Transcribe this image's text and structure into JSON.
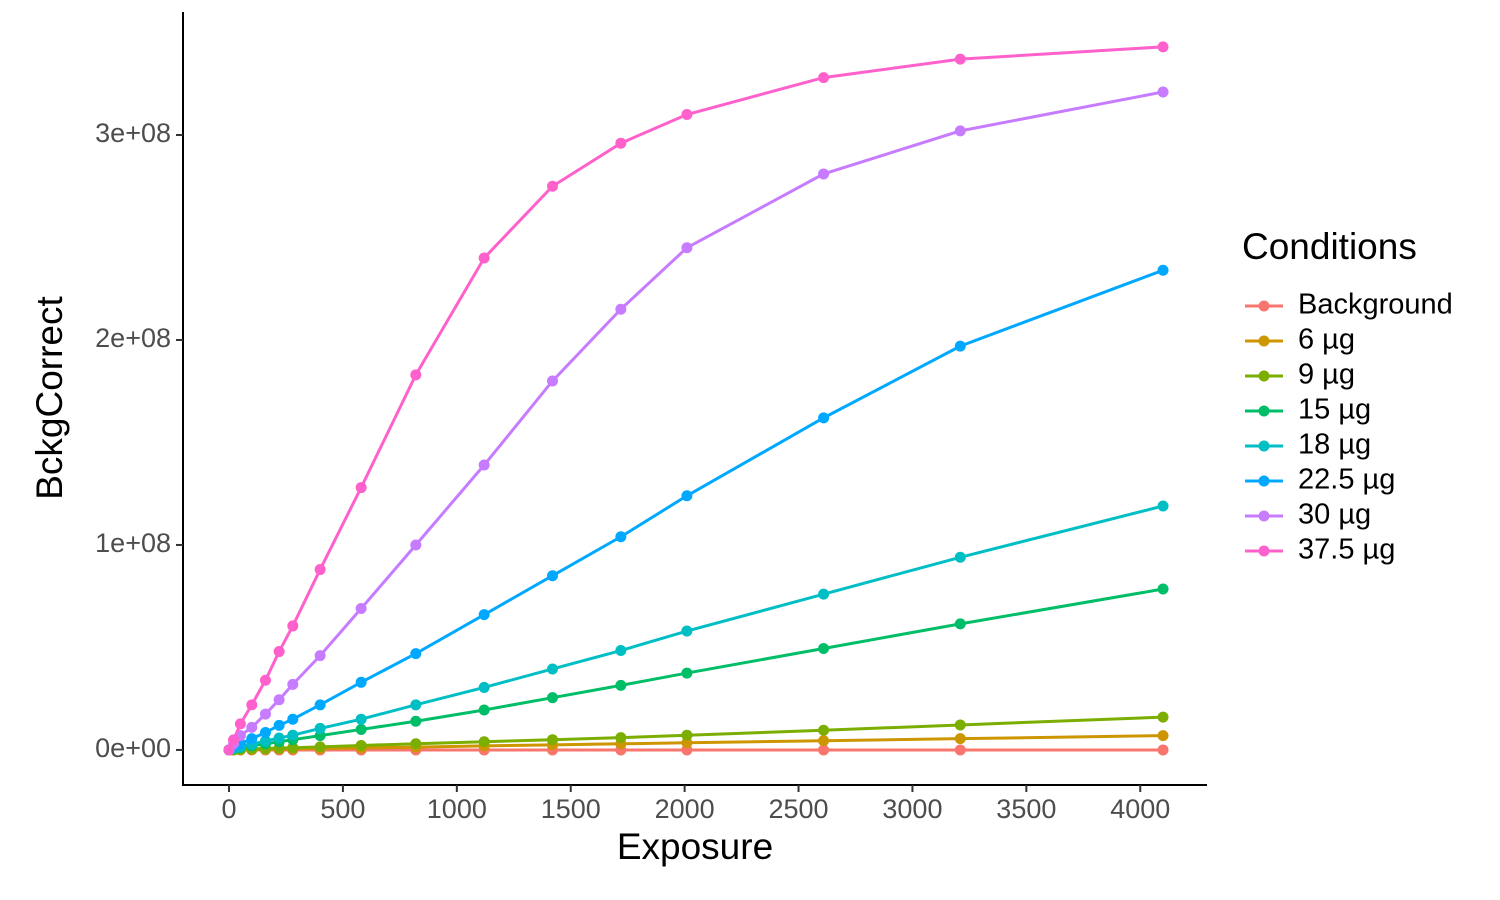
{
  "chart_data": {
    "type": "line",
    "x_label": "Exposure",
    "y_label": "BckgCorrect",
    "legend_title": "Conditions",
    "legend": "right",
    "grid": false,
    "x": [
      0,
      20,
      50,
      100,
      160,
      220,
      280,
      400,
      580,
      820,
      1120,
      1420,
      1720,
      2010,
      2610,
      3210,
      4100
    ],
    "xlim": [
      -202,
      4293
    ],
    "xticks": [
      0,
      500,
      1000,
      1500,
      2000,
      2500,
      3000,
      3500,
      4000
    ],
    "ylim": [
      -17100000,
      360000000
    ],
    "yticks": [
      {
        "value": 0,
        "label": "0e+00"
      },
      {
        "value": 100000000,
        "label": "1e+08"
      },
      {
        "value": 200000000,
        "label": "2e+08"
      },
      {
        "value": 300000000,
        "label": "3e+08"
      }
    ],
    "series": [
      {
        "name": "Background",
        "color": "#F8766D",
        "values": [
          0,
          0,
          0,
          0,
          0,
          0,
          0,
          0,
          0,
          0,
          0,
          0,
          0,
          0,
          0,
          0,
          0
        ]
      },
      {
        "name": "6 µg",
        "color": "#CD9600",
        "values": [
          0,
          50000,
          100000,
          200000,
          300000,
          400000,
          500000,
          700000,
          1000000,
          1400000,
          2000000,
          2500000,
          3000000,
          3500000,
          4500000,
          5500000,
          7000000
        ]
      },
      {
        "name": "9 µg",
        "color": "#7CAE00",
        "values": [
          0,
          100000,
          300000,
          500000,
          700000,
          900000,
          1100000,
          1500000,
          2200000,
          3000000,
          4000000,
          5000000,
          6000000,
          7200000,
          9600000,
          12200000,
          16000000
        ]
      },
      {
        "name": "15 µg",
        "color": "#00BE67",
        "values": [
          0,
          500000,
          1100000,
          2000000,
          3000000,
          4000000,
          5000000,
          7000000,
          10000000,
          14000000,
          19500000,
          25500000,
          31500000,
          37500000,
          49500000,
          61500000,
          78500000
        ]
      },
      {
        "name": "18 µg",
        "color": "#00BFC4",
        "values": [
          0,
          800000,
          1500000,
          2800000,
          4400000,
          5800000,
          7200000,
          10500000,
          15000000,
          22000000,
          30500000,
          39500000,
          48500000,
          58000000,
          76000000,
          94000000,
          119000000
        ]
      },
      {
        "name": "22.5 µg",
        "color": "#00A9FF",
        "values": [
          0,
          1500000,
          3000000,
          5500000,
          8500000,
          12000000,
          15000000,
          22000000,
          33000000,
          47000000,
          66000000,
          85000000,
          104000000,
          124000000,
          162000000,
          197000000,
          234000000
        ]
      },
      {
        "name": "30 µg",
        "color": "#C77CFF",
        "values": [
          0,
          3000000,
          7000000,
          11000000,
          17500000,
          24500000,
          32000000,
          46000000,
          69000000,
          100000000,
          139000000,
          180000000,
          215000000,
          245000000,
          281000000,
          302000000,
          321000000
        ]
      },
      {
        "name": "37.5 µg",
        "color": "#FF61CC",
        "values": [
          0,
          4900000,
          12700000,
          22000000,
          34000000,
          48000000,
          60500000,
          88000000,
          128000000,
          183000000,
          240000000,
          275000000,
          296000000,
          310000000,
          328000000,
          337000000,
          343000000
        ]
      }
    ]
  }
}
